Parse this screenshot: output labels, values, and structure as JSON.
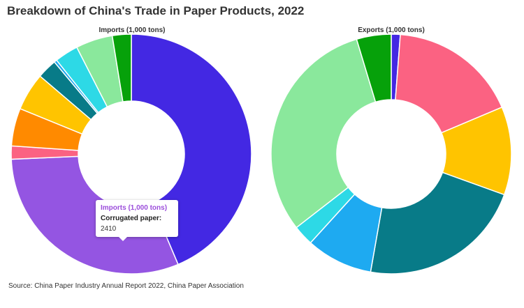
{
  "title": "Breakdown of China's Trade in Paper Products, 2022",
  "source": "Source: China Paper Industry Annual Report 2022, China Paper Association",
  "tooltip": {
    "title": "Imports (1,000 tons)",
    "label": "Corrugated paper:",
    "value": "2410"
  },
  "chart_data": [
    {
      "type": "pie",
      "donut": true,
      "title": "Imports (1,000 tons)",
      "slices": [
        {
          "value": 3430,
          "color": "#4328e3"
        },
        {
          "value": 2410,
          "color": "#9455e2"
        },
        {
          "value": 140,
          "color": "#fb6282"
        },
        {
          "value": 400,
          "color": "#ff8a00"
        },
        {
          "value": 400,
          "color": "#ffc400"
        },
        {
          "value": 210,
          "color": "#087b88"
        },
        {
          "value": 30,
          "color": "#1eaaf1"
        },
        {
          "value": 250,
          "color": "#2dd9e6"
        },
        {
          "value": 390,
          "color": "#8ae89c"
        },
        {
          "value": 200,
          "color": "#06a10a"
        }
      ]
    },
    {
      "type": "pie",
      "donut": true,
      "title": "Exports (1,000 tons)",
      "slices": [
        {
          "value": 70,
          "color": "#4328e3"
        },
        {
          "value": 1010,
          "color": "#fb6282"
        },
        {
          "value": 690,
          "color": "#ffc400"
        },
        {
          "value": 1290,
          "color": "#087b88"
        },
        {
          "value": 520,
          "color": "#1eaaf1"
        },
        {
          "value": 160,
          "color": "#2dd9e6"
        },
        {
          "value": 1790,
          "color": "#8ae89c"
        },
        {
          "value": 270,
          "color": "#06a10a"
        }
      ]
    }
  ]
}
